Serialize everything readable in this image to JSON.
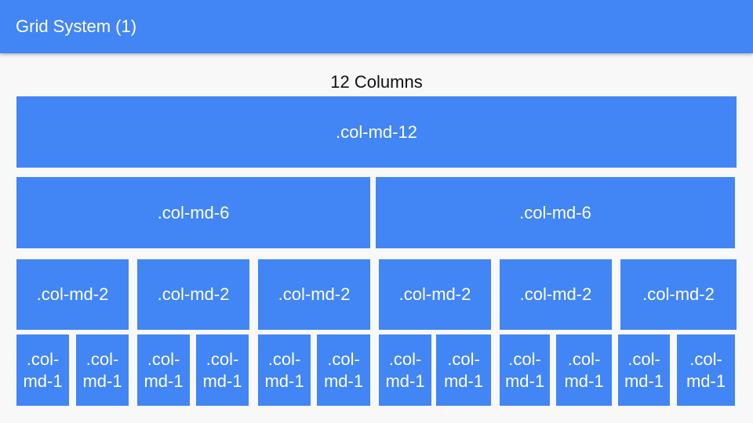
{
  "header": {
    "title": "Grid System (1)"
  },
  "section_title": "12 Columns",
  "rows": {
    "full": [
      ".col-md-12"
    ],
    "halves": [
      ".col-md-6",
      ".col-md-6"
    ],
    "sixths": [
      ".col-md-2",
      ".col-md-2",
      ".col-md-2",
      ".col-md-2",
      ".col-md-2",
      ".col-md-2"
    ],
    "twelfths": [
      ".col-md-1",
      ".col-md-1",
      ".col-md-1",
      ".col-md-1",
      ".col-md-1",
      ".col-md-1",
      ".col-md-1",
      ".col-md-1",
      ".col-md-1",
      ".col-md-1",
      ".col-md-1",
      ".col-md-1"
    ]
  },
  "colors": {
    "accent": "#4285f4",
    "background": "#f8f8f8"
  }
}
